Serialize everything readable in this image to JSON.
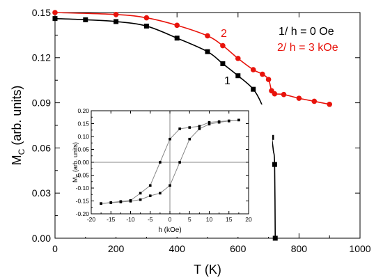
{
  "chart_data": [
    {
      "type": "line",
      "xlabel": "T (K)",
      "ylabel_main": "M",
      "ylabel_sub": "C",
      "ylabel_rest": " (arb. units)",
      "xlim": [
        0,
        1000
      ],
      "ylim": [
        0,
        0.15
      ],
      "xticks": [
        0,
        200,
        400,
        600,
        800,
        1000
      ],
      "xtick_labels": [
        "0",
        "200",
        "400",
        "600",
        "800",
        "1000"
      ],
      "yticks": [
        0,
        0.03,
        0.06,
        0.09,
        0.12,
        0.15
      ],
      "ytick_labels": [
        "0.00",
        "0.03",
        "0.06",
        "0.09",
        "0.12",
        "0.15"
      ],
      "grid": false,
      "legend_lines": [
        {
          "text": "1/ h = 0 Oe",
          "color": "#000000"
        },
        {
          "text": "2/ h = 3 kOe",
          "color": "#e8130b"
        }
      ],
      "series": [
        {
          "label": "1",
          "color": "#000000",
          "marker": "square",
          "x": [
            0,
            100,
            200,
            300,
            400,
            500,
            550,
            600,
            650,
            700,
            710,
            720,
            722
          ],
          "y": [
            0.146,
            0.1452,
            0.144,
            0.141,
            0.133,
            0.124,
            0.116,
            0.108,
            0.099,
            0.076,
            0.067,
            0.049,
            0.0
          ],
          "curve": {
            "x": [
              0,
              100,
              200,
              300,
              400,
              500,
              550,
              600,
              650,
              680,
              700,
              710,
              716,
              720,
              722
            ],
            "y": [
              0.146,
              0.1452,
              0.144,
              0.141,
              0.133,
              0.124,
              0.116,
              0.108,
              0.099,
              0.088,
              0.076,
              0.067,
              0.058,
              0.049,
              0.0
            ]
          }
        },
        {
          "label": "2",
          "color": "#e8130b",
          "marker": "circle",
          "x": [
            0,
            200,
            300,
            400,
            500,
            550,
            600,
            650,
            680,
            700,
            710,
            720,
            750,
            800,
            850,
            900
          ],
          "y": [
            0.15,
            0.1487,
            0.1465,
            0.1415,
            0.1345,
            0.128,
            0.1195,
            0.112,
            0.109,
            0.1055,
            0.098,
            0.096,
            0.0955,
            0.093,
            0.091,
            0.089
          ]
        }
      ],
      "series_labels": [
        {
          "text": "1",
          "color": "#000000"
        },
        {
          "text": "2",
          "color": "#e8130b"
        }
      ]
    },
    {
      "type": "line",
      "xlabel": "h (kOe)",
      "ylabel_main": "M",
      "ylabel_sub": "C",
      "ylabel_rest": " (arb. units)",
      "xlim": [
        -20,
        20
      ],
      "ylim": [
        -0.2,
        0.2
      ],
      "xticks": [
        -20,
        -15,
        -10,
        -5,
        0,
        5,
        10,
        15,
        20
      ],
      "xtick_labels": [
        "-20",
        "-15",
        "-10",
        "-5",
        "0",
        "5",
        "10",
        "15",
        "20"
      ],
      "yticks": [
        -0.2,
        -0.15,
        -0.1,
        -0.05,
        0,
        0.05,
        0.1,
        0.15,
        0.2
      ],
      "ytick_labels": [
        "-0.20",
        "-0.15",
        "-0.10",
        "-0.05",
        "0.00",
        "0.05",
        "0.10",
        "0.15",
        "0.20"
      ],
      "grid": false,
      "zero_lines": true,
      "color": "#000000",
      "line_color": "#888888",
      "series": [
        {
          "x": [
            -17.5,
            -15,
            -12.5,
            -10,
            -7.5,
            -5,
            -2.5,
            0,
            2.5,
            5,
            7.5,
            10,
            12.5,
            15,
            17.5
          ],
          "y": [
            -0.16,
            -0.156,
            -0.152,
            -0.148,
            -0.12,
            -0.09,
            0.0,
            0.09,
            0.13,
            0.135,
            0.14,
            0.155,
            0.158,
            0.161,
            0.164
          ]
        },
        {
          "x": [
            -17.5,
            -15,
            -12.5,
            -10,
            -7.5,
            -5,
            -2.5,
            0,
            2.5,
            5,
            7.5,
            10,
            12.5,
            15,
            17.5
          ],
          "y": [
            -0.16,
            -0.157,
            -0.154,
            -0.151,
            -0.145,
            -0.13,
            -0.12,
            -0.09,
            0.0,
            0.09,
            0.13,
            0.148,
            0.155,
            0.16,
            0.164
          ]
        }
      ]
    }
  ]
}
